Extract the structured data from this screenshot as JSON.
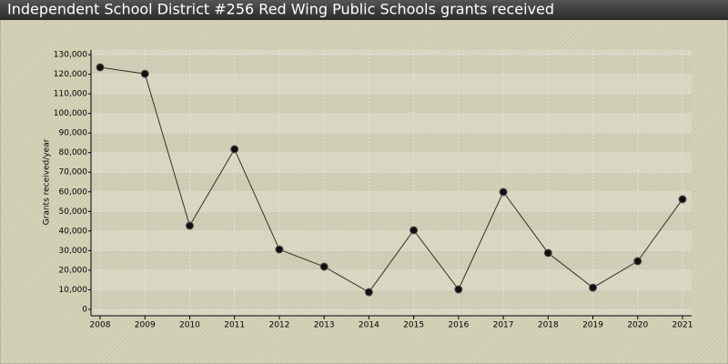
{
  "chart_data": {
    "type": "line",
    "title": "Independent School District #256 Red Wing Public Schools grants received",
    "y_label": "Grants received/year",
    "x": [
      2008,
      2009,
      2010,
      2011,
      2012,
      2013,
      2014,
      2015,
      2016,
      2017,
      2018,
      2019,
      2020,
      2021
    ],
    "series": [
      {
        "name": "Grants received",
        "color": "#333322",
        "values": [
          123500,
          120200,
          42700,
          81700,
          30600,
          21800,
          8800,
          40400,
          10200,
          59900,
          28800,
          11100,
          24600,
          56200
        ]
      }
    ],
    "xlim": [
      2008,
      2021
    ],
    "xticks": [
      2008,
      2009,
      2010,
      2011,
      2012,
      2013,
      2014,
      2015,
      2016,
      2017,
      2018,
      2019,
      2020,
      2021
    ],
    "ylim": [
      0,
      130000
    ],
    "yticks": [
      0,
      {
        "value": 10000,
        "label": "10,000"
      },
      {
        "value": 20000,
        "label": "20,000"
      },
      {
        "value": 30000,
        "label": "30,000"
      },
      {
        "value": 40000,
        "label": "40,000"
      },
      {
        "value": 50000,
        "label": "50,000"
      },
      {
        "value": 60000,
        "label": "60,000"
      },
      {
        "value": 70000,
        "label": "70,000"
      },
      {
        "value": 80000,
        "label": "80,000"
      },
      {
        "value": 90000,
        "label": "90,000"
      },
      {
        "value": 100000,
        "label": "100,000"
      },
      {
        "value": 110000,
        "label": "110,000"
      },
      {
        "value": 120000,
        "label": "120,000"
      },
      {
        "value": 130000,
        "label": "130,000"
      }
    ],
    "grid": true
  }
}
